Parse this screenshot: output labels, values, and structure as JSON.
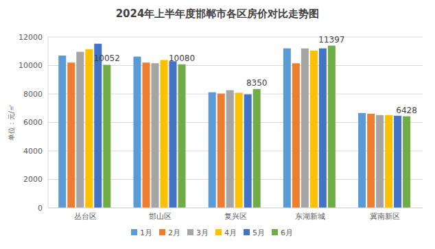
{
  "chart_data": {
    "type": "bar",
    "title": "2024年上半年度邯郸市各区房价对比走势图",
    "y_label": "单位：元/㎡",
    "categories": [
      "丛台区",
      "邯山区",
      "复兴区",
      "东湖新城",
      "冀南新区"
    ],
    "series": [
      {
        "name": "1月",
        "color": "#5b9bd5",
        "values": [
          10700,
          10630,
          8120,
          11200,
          6660
        ]
      },
      {
        "name": "2月",
        "color": "#ed7d31",
        "values": [
          10200,
          10200,
          8030,
          10160,
          6610
        ]
      },
      {
        "name": "3月",
        "color": "#a5a5a5",
        "values": [
          10960,
          10160,
          8270,
          11200,
          6520
        ]
      },
      {
        "name": "4月",
        "color": "#ffc000",
        "values": [
          11150,
          10390,
          8080,
          11050,
          6520
        ]
      },
      {
        "name": "5月",
        "color": "#4472c4",
        "values": [
          11530,
          10300,
          7980,
          11200,
          6470
        ]
      },
      {
        "name": "6月",
        "color": "#70ad47",
        "values": [
          10052,
          10080,
          8350,
          11397,
          6428
        ],
        "data_labels": true
      }
    ],
    "ylim": [
      0,
      12000
    ],
    "yticks": [
      0,
      2000,
      4000,
      6000,
      8000,
      10000,
      12000
    ],
    "grid": true,
    "legend": "bottom"
  }
}
